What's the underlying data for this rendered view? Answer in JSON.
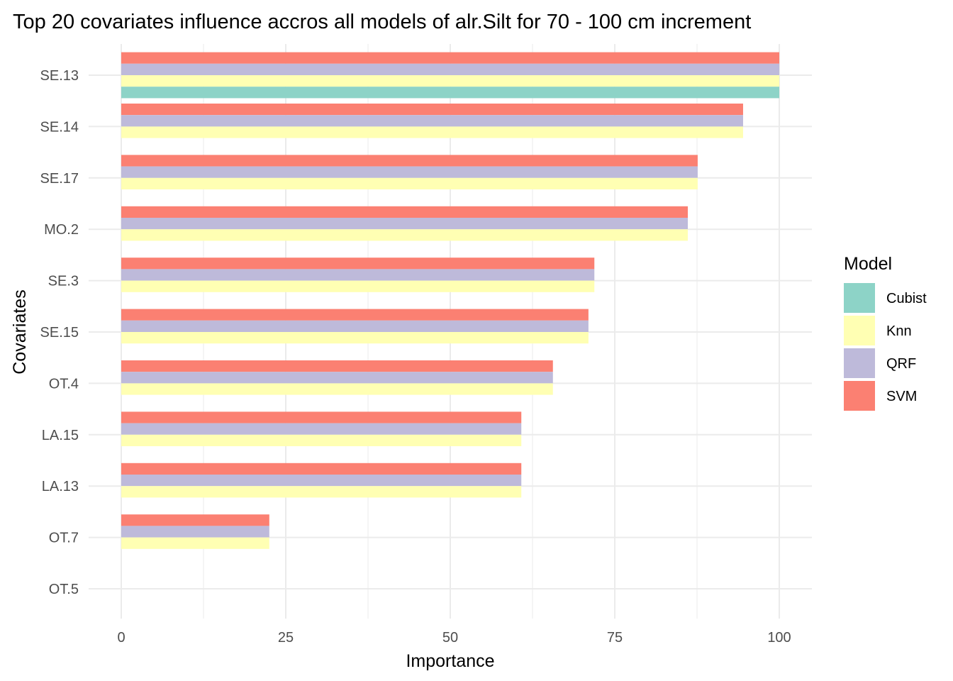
{
  "chart_data": {
    "type": "bar",
    "orientation": "horizontal",
    "title": "Top 20 covariates influence accros all models of alr.Silt for 70 - 100 cm increment",
    "xlabel": "Importance",
    "ylabel": "Covariates",
    "xlim": [
      0,
      100
    ],
    "x_ticks": [
      "0",
      "25",
      "50",
      "75",
      "100"
    ],
    "categories": [
      "SE.13",
      "SE.14",
      "SE.17",
      "MO.2",
      "SE.3",
      "SE.15",
      "OT.4",
      "LA.15",
      "LA.13",
      "OT.7",
      "OT.5"
    ],
    "series": [
      {
        "name": "SVM",
        "color": "#FB8072",
        "values": [
          100,
          94.5,
          87.6,
          86.1,
          71.9,
          71.0,
          65.6,
          60.8,
          60.8,
          22.5,
          0
        ]
      },
      {
        "name": "QRF",
        "color": "#BEBADA",
        "values": [
          100,
          94.5,
          87.6,
          86.1,
          71.9,
          71.0,
          65.6,
          60.8,
          60.8,
          22.5,
          0
        ]
      },
      {
        "name": "Knn",
        "color": "#FFFFB3",
        "values": [
          100,
          94.5,
          87.6,
          86.1,
          71.9,
          71.0,
          65.6,
          60.8,
          60.8,
          22.5,
          0
        ]
      },
      {
        "name": "Cubist",
        "color": "#8DD3C7",
        "values": [
          100,
          null,
          null,
          null,
          null,
          null,
          null,
          null,
          null,
          null,
          null
        ]
      }
    ],
    "legend": {
      "title": "Model",
      "placement": "right",
      "items": [
        {
          "label": "Cubist",
          "color": "#8DD3C7"
        },
        {
          "label": "Knn",
          "color": "#FFFFB3"
        },
        {
          "label": "QRF",
          "color": "#BEBADA"
        },
        {
          "label": "SVM",
          "color": "#FB8072"
        }
      ]
    },
    "grid": true
  }
}
